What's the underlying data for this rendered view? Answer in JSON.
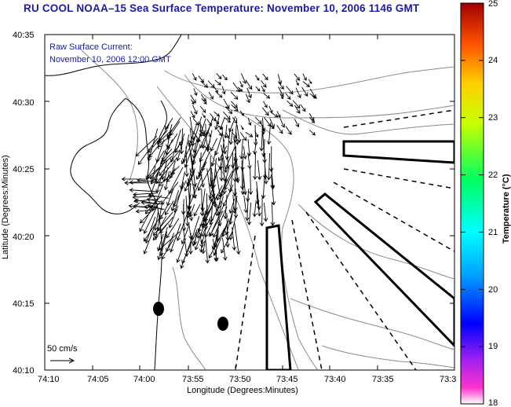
{
  "title": "RU COOL  NOAA–15  Sea Surface Temperature:  November 10, 2006 1146 GMT",
  "info": {
    "line1": "Raw Surface Current:",
    "line2": "November 10, 2006 12:00 GMT"
  },
  "scale": {
    "label": "50 cm/s"
  },
  "axes": {
    "xlabel": "Longitude (Degrees:Minutes)",
    "ylabel": "Latitude (Degrees:Minutes)",
    "xticks": [
      "74:10",
      "74:05",
      "74:00",
      "73:55",
      "73:50",
      "73:45",
      "73:40",
      "73:35",
      "73:3"
    ],
    "yticks": [
      "40:35",
      "40:30",
      "40:25",
      "40:20",
      "40:15",
      "40:10"
    ]
  },
  "colorbar": {
    "label": "Temperature (°C)",
    "ticks": [
      "25",
      "24",
      "23",
      "22",
      "21",
      "20",
      "19",
      "18"
    ],
    "range": [
      18,
      25
    ]
  },
  "colors": {
    "title": "#1a1aa6",
    "contour": "#888888",
    "vector": "#000000"
  }
}
